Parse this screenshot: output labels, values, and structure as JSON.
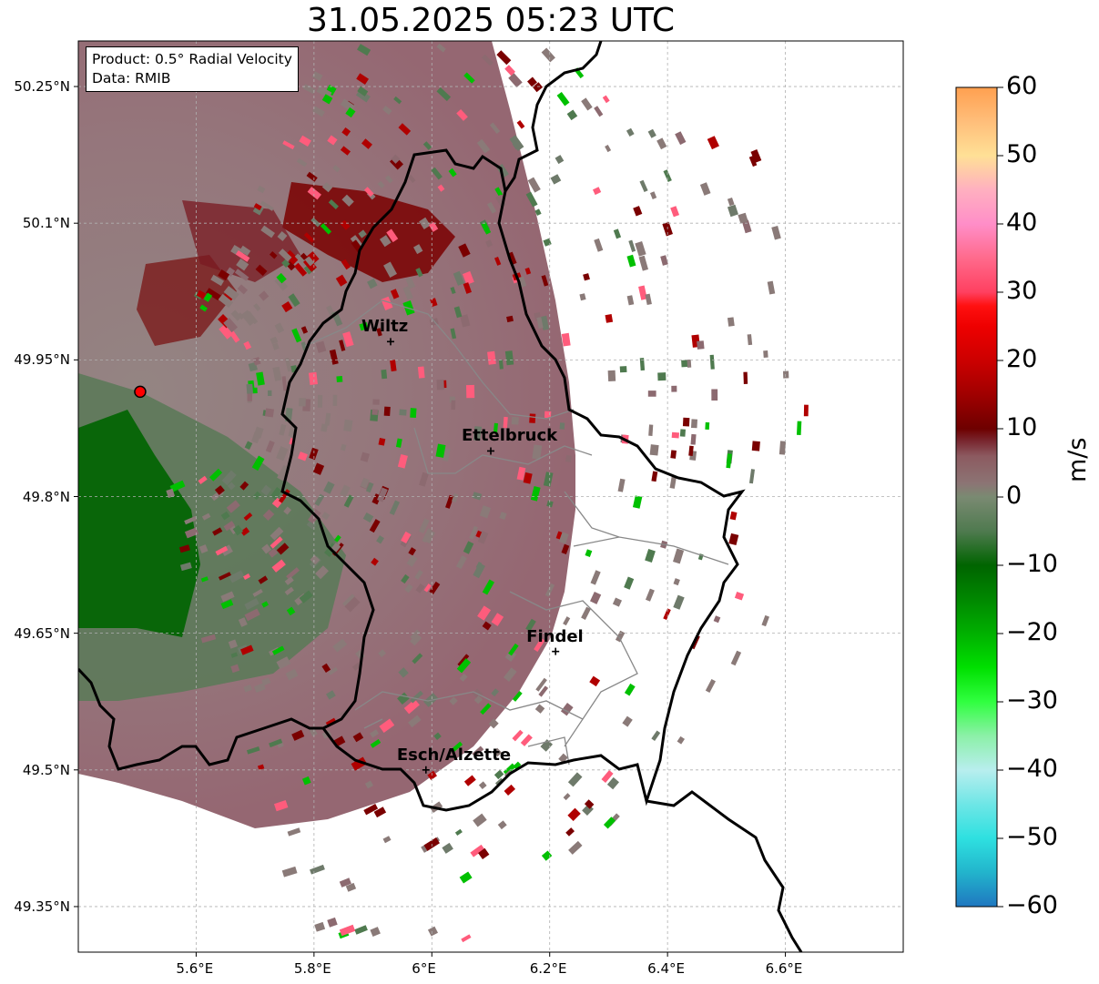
{
  "title": "31.05.2025 05:23 UTC",
  "info": {
    "product_line": "Product: 0.5° Radial Velocity",
    "data_line": "Data: RMIB"
  },
  "map": {
    "lon_range": [
      5.4,
      6.8
    ],
    "lat_range": [
      49.3,
      50.3
    ],
    "lon_ticks": [
      "5.6°E",
      "5.8°E",
      "6°E",
      "6.2°E",
      "6.4°E",
      "6.6°E"
    ],
    "lat_ticks": [
      "50.25°N",
      "50.1°N",
      "49.95°N",
      "49.8°N",
      "49.65°N",
      "49.5°N",
      "49.35°N"
    ],
    "radar_site": {
      "lon": 5.505,
      "lat": 49.915
    },
    "cities": [
      {
        "name": "Wiltz",
        "lon": 5.93,
        "lat": 49.97
      },
      {
        "name": "Ettelbruck",
        "lon": 6.1,
        "lat": 49.85
      },
      {
        "name": "Findel",
        "lon": 6.21,
        "lat": 49.63
      },
      {
        "name": "Esch/Alzette",
        "lon": 5.99,
        "lat": 49.5
      }
    ]
  },
  "colorbar": {
    "label": "m/s",
    "ticks": [
      "60",
      "50",
      "40",
      "30",
      "20",
      "10",
      "0",
      "−10",
      "−20",
      "−30",
      "−40",
      "−50",
      "−60"
    ],
    "range": [
      -60,
      60
    ],
    "stops": [
      {
        "v": -60,
        "c": "#1f77c0"
      },
      {
        "v": -55,
        "c": "#22b4cc"
      },
      {
        "v": -50,
        "c": "#2ee0e0"
      },
      {
        "v": -45,
        "c": "#6ee6e6"
      },
      {
        "v": -40,
        "c": "#b8eeee"
      },
      {
        "v": -35,
        "c": "#8cf0a8"
      },
      {
        "v": -30,
        "c": "#30ff40"
      },
      {
        "v": -25,
        "c": "#00e000"
      },
      {
        "v": -20,
        "c": "#00b000"
      },
      {
        "v": -15,
        "c": "#008800"
      },
      {
        "v": -10,
        "c": "#006400"
      },
      {
        "v": -5,
        "c": "#4f7a4f"
      },
      {
        "v": 0,
        "c": "#7a8a72"
      },
      {
        "v": 2,
        "c": "#8c7474"
      },
      {
        "v": 6,
        "c": "#8c5a60"
      },
      {
        "v": 8,
        "c": "#7a2b34"
      },
      {
        "v": 10,
        "c": "#6e0000"
      },
      {
        "v": 15,
        "c": "#a00000"
      },
      {
        "v": 20,
        "c": "#cc0000"
      },
      {
        "v": 25,
        "c": "#ee0000"
      },
      {
        "v": 28,
        "c": "#ff1010"
      },
      {
        "v": 30,
        "c": "#ff4060"
      },
      {
        "v": 35,
        "c": "#ff6a8c"
      },
      {
        "v": 40,
        "c": "#ff8ec8"
      },
      {
        "v": 45,
        "c": "#ffb0c0"
      },
      {
        "v": 50,
        "c": "#ffe096"
      },
      {
        "v": 55,
        "c": "#ffbe7a"
      },
      {
        "v": 60,
        "c": "#ffa050"
      }
    ]
  },
  "colors": {
    "inbound_far": "#006400",
    "inbound_near": "#4f7a4f",
    "neutral": "#8a7a78",
    "outbound_mid": "#8c5a66",
    "outbound_strong": "#7a0000",
    "border": "#000000",
    "canton_border": "#888888"
  }
}
